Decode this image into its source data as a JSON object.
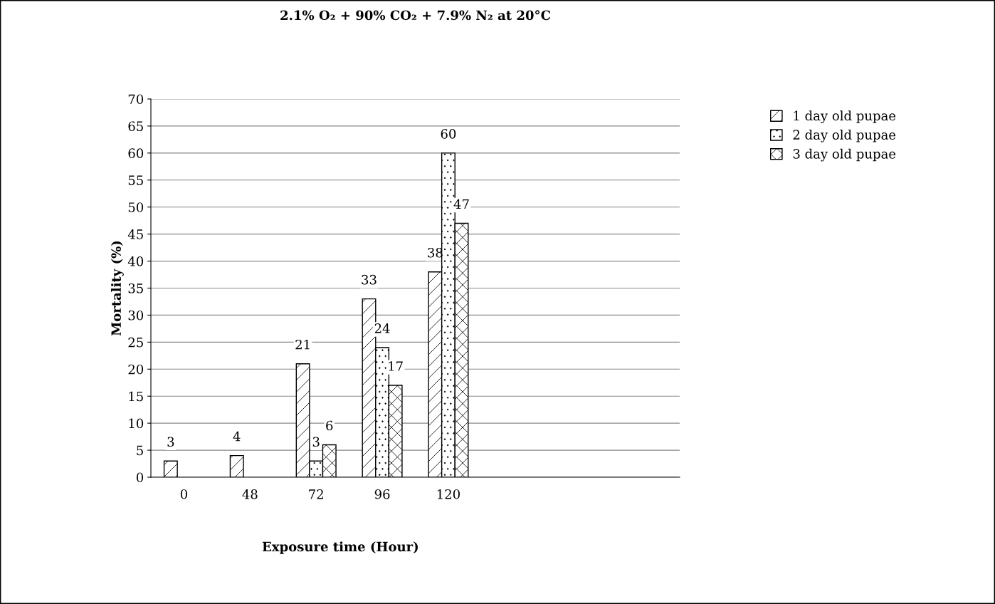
{
  "chart_data": {
    "type": "bar",
    "title": "2.1% O₂ + 90% CO₂ + 7.9% N₂ at 20°C",
    "xlabel": "Exposure time (Hour)",
    "ylabel": "Mortality (%)",
    "categories": [
      "0",
      "48",
      "72",
      "96",
      "120",
      null,
      null,
      null
    ],
    "series": [
      {
        "name": "1 day old pupae",
        "color": "#000000",
        "values": [
          3,
          4,
          21,
          33,
          38,
          null,
          null,
          null
        ]
      },
      {
        "name": "2 day old pupae",
        "color": "#000000",
        "values": [
          null,
          null,
          3,
          24,
          60,
          null,
          null,
          null
        ]
      },
      {
        "name": "3 day old pupae",
        "color": "#000000",
        "values": [
          null,
          null,
          6,
          17,
          47,
          null,
          null,
          null
        ]
      }
    ],
    "ylim": [
      0,
      70
    ],
    "yticks": [
      0,
      5,
      10,
      15,
      20,
      25,
      30,
      35,
      40,
      45,
      50,
      55,
      60,
      65,
      70
    ],
    "grid": "y",
    "legend": "top right",
    "data_labels": true
  }
}
